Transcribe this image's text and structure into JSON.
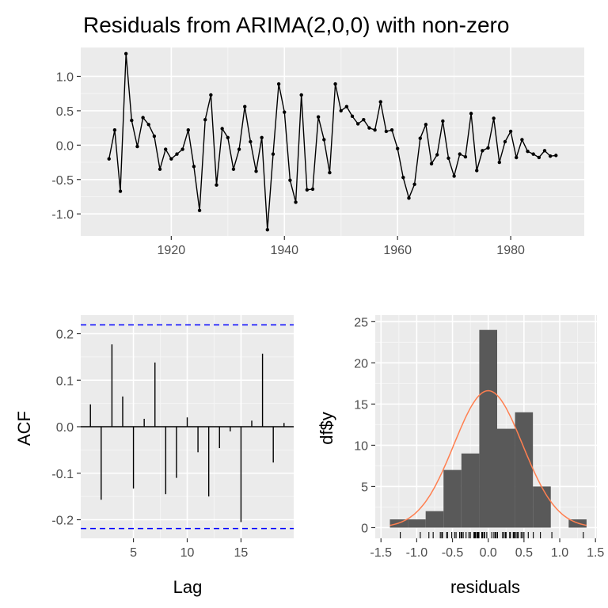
{
  "colors": {
    "panel_bg": "#ebebeb",
    "grid_major": "#ffffff",
    "grid_minor": "#f5f5f5",
    "series": "#000000",
    "conf_limit": "#0000ff",
    "hist_fill": "#595959",
    "density_line": "#ff7f50",
    "tick_text": "#4d4d4d"
  },
  "chart_data": [
    {
      "type": "line",
      "title": "Residuals from ARIMA(2,0,0) with non-zero",
      "xlabel": "",
      "ylabel": "",
      "xlim": [
        1904,
        1993
      ],
      "ylim": [
        -1.32,
        1.42
      ],
      "xticks": [
        1920,
        1940,
        1960,
        1980
      ],
      "xtick_labels": [
        "1920",
        "1940",
        "1960",
        "1980"
      ],
      "yticks": [
        -1.0,
        -0.5,
        0.0,
        0.5,
        1.0
      ],
      "ytick_labels": [
        "-1.0",
        "-0.5",
        "0.0",
        "0.5",
        "1.0"
      ],
      "grid": true,
      "x": [
        1909,
        1910,
        1911,
        1912,
        1913,
        1914,
        1915,
        1916,
        1917,
        1918,
        1919,
        1920,
        1921,
        1922,
        1923,
        1924,
        1925,
        1926,
        1927,
        1928,
        1929,
        1930,
        1931,
        1932,
        1933,
        1934,
        1935,
        1936,
        1937,
        1938,
        1939,
        1940,
        1941,
        1942,
        1943,
        1944,
        1945,
        1946,
        1947,
        1948,
        1949,
        1950,
        1951,
        1952,
        1953,
        1954,
        1955,
        1956,
        1957,
        1958,
        1959,
        1960,
        1961,
        1962,
        1963,
        1964,
        1965,
        1966,
        1967,
        1968,
        1969,
        1970,
        1971,
        1972,
        1973,
        1974,
        1975,
        1976,
        1977,
        1978,
        1979,
        1980,
        1981,
        1982,
        1983,
        1984,
        1985,
        1986,
        1987,
        1988
      ],
      "y": [
        -0.2,
        0.22,
        -0.67,
        1.33,
        0.36,
        -0.02,
        0.4,
        0.3,
        0.13,
        -0.35,
        -0.06,
        -0.2,
        -0.13,
        -0.06,
        0.22,
        -0.31,
        -0.95,
        0.37,
        0.73,
        -0.58,
        0.24,
        0.11,
        -0.35,
        -0.06,
        0.56,
        0.05,
        -0.38,
        0.11,
        -1.23,
        -0.13,
        0.89,
        0.48,
        -0.51,
        -0.83,
        0.73,
        -0.65,
        -0.64,
        0.41,
        0.08,
        -0.4,
        0.89,
        0.5,
        0.56,
        0.42,
        0.31,
        0.37,
        0.25,
        0.22,
        0.63,
        0.2,
        0.22,
        -0.05,
        -0.47,
        -0.77,
        -0.57,
        0.1,
        0.3,
        -0.27,
        -0.14,
        0.35,
        -0.19,
        -0.45,
        -0.13,
        -0.17,
        0.46,
        -0.37,
        -0.08,
        -0.04,
        0.39,
        -0.25,
        0.05,
        0.2,
        -0.18,
        0.08,
        -0.09,
        -0.13,
        -0.18,
        -0.08,
        -0.16,
        -0.15
      ]
    },
    {
      "type": "bar",
      "xlabel": "Lag",
      "ylabel": "ACF",
      "xlim": [
        0.1,
        19.9
      ],
      "ylim": [
        -0.24,
        0.24
      ],
      "xticks": [
        5,
        10,
        15
      ],
      "xtick_labels": [
        "5",
        "10",
        "15"
      ],
      "yticks": [
        -0.2,
        -0.1,
        0.0,
        0.1,
        0.2
      ],
      "ytick_labels": [
        "-0.2",
        "-0.1",
        "0.0",
        "0.1",
        "0.2"
      ],
      "grid": true,
      "lags": [
        1,
        2,
        3,
        4,
        5,
        6,
        7,
        8,
        9,
        10,
        11,
        12,
        13,
        14,
        15,
        16,
        17,
        18,
        19
      ],
      "values": [
        0.048,
        -0.157,
        0.177,
        0.065,
        -0.133,
        0.017,
        0.138,
        -0.145,
        -0.11,
        0.02,
        -0.055,
        -0.15,
        -0.046,
        -0.01,
        -0.205,
        0.013,
        0.157,
        -0.077,
        0.008
      ],
      "conf_limits": [
        -0.219,
        0.219
      ]
    },
    {
      "type": "bar",
      "xlabel": "residuals",
      "ylabel": "df$y",
      "xlim": [
        -1.58,
        1.52
      ],
      "ylim": [
        -1.3,
        25.8
      ],
      "xticks": [
        -1.5,
        -1.0,
        -0.5,
        0.0,
        0.5,
        1.0,
        1.5
      ],
      "xtick_labels": [
        "-1.5",
        "-1.0",
        "-0.5",
        "0.0",
        "0.5",
        "1.0",
        "1.5"
      ],
      "yticks": [
        0,
        5,
        10,
        15,
        20,
        25
      ],
      "ytick_labels": [
        "0",
        "5",
        "10",
        "15",
        "20",
        "25"
      ],
      "grid": true,
      "bin_width": 0.25,
      "bin_centers": [
        -1.25,
        -1.0,
        -0.75,
        -0.5,
        -0.25,
        0.0,
        0.25,
        0.5,
        0.75,
        1.0,
        1.25
      ],
      "values": [
        1,
        1,
        2,
        7,
        9,
        24,
        12,
        14,
        5,
        0,
        1
      ],
      "density_curve": {
        "mean": 0.0,
        "sd": 0.48,
        "scale": 20
      },
      "rug": [
        -1.23,
        -0.95,
        -0.83,
        -0.77,
        -0.67,
        -0.65,
        -0.64,
        -0.58,
        -0.57,
        -0.51,
        -0.47,
        -0.45,
        -0.4,
        -0.38,
        -0.37,
        -0.35,
        -0.31,
        -0.27,
        -0.25,
        -0.2,
        -0.19,
        -0.18,
        -0.16,
        -0.15,
        -0.14,
        -0.13,
        -0.09,
        -0.08,
        -0.06,
        -0.05,
        -0.02,
        0.05,
        0.08,
        0.1,
        0.11,
        0.13,
        0.2,
        0.22,
        0.24,
        0.25,
        0.3,
        0.31,
        0.35,
        0.36,
        0.37,
        0.39,
        0.41,
        0.42,
        0.46,
        0.48,
        0.5,
        0.56,
        0.63,
        0.73,
        0.89,
        1.33
      ]
    }
  ]
}
